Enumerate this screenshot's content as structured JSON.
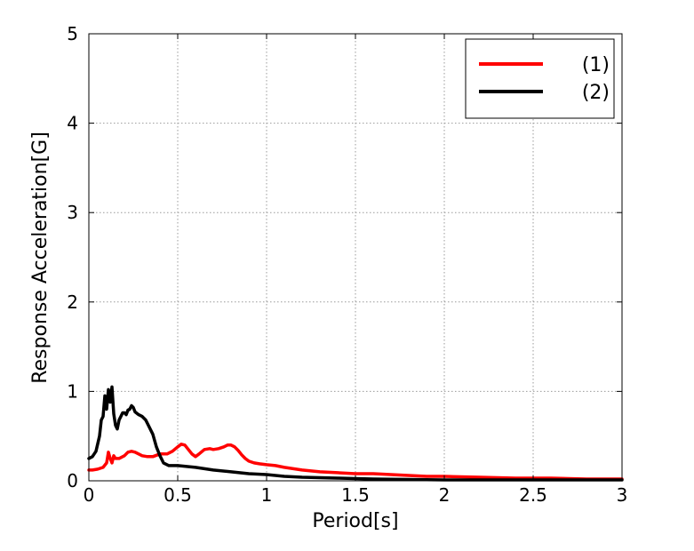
{
  "chart_data": {
    "type": "line",
    "title": "",
    "xlabel": "Period[s]",
    "ylabel": "Response Acceleration[G]",
    "xlim": [
      0,
      3
    ],
    "ylim": [
      0,
      5
    ],
    "xticks": [
      0,
      0.5,
      1,
      1.5,
      2,
      2.5,
      3
    ],
    "xtick_labels": [
      "0",
      "0.5",
      "1",
      "1.5",
      "2",
      "2.5",
      "3"
    ],
    "yticks": [
      0,
      1,
      2,
      3,
      4,
      5
    ],
    "ytick_labels": [
      "0",
      "1",
      "2",
      "3",
      "4",
      "5"
    ],
    "grid": true,
    "legend_position": "top-right",
    "series": [
      {
        "name": "(1)",
        "color": "#ff0000",
        "x": [
          0.0,
          0.02,
          0.05,
          0.08,
          0.1,
          0.11,
          0.12,
          0.13,
          0.14,
          0.15,
          0.17,
          0.2,
          0.22,
          0.24,
          0.26,
          0.28,
          0.3,
          0.33,
          0.36,
          0.4,
          0.44,
          0.47,
          0.5,
          0.52,
          0.54,
          0.56,
          0.58,
          0.6,
          0.62,
          0.65,
          0.68,
          0.7,
          0.73,
          0.76,
          0.78,
          0.8,
          0.82,
          0.84,
          0.86,
          0.88,
          0.9,
          0.93,
          0.96,
          1.0,
          1.05,
          1.1,
          1.2,
          1.3,
          1.4,
          1.5,
          1.6,
          1.7,
          1.8,
          1.9,
          2.0,
          2.2,
          2.4,
          2.6,
          2.8,
          3.0
        ],
        "y": [
          0.12,
          0.12,
          0.13,
          0.15,
          0.2,
          0.32,
          0.25,
          0.2,
          0.28,
          0.25,
          0.25,
          0.28,
          0.32,
          0.33,
          0.32,
          0.3,
          0.28,
          0.27,
          0.27,
          0.3,
          0.3,
          0.33,
          0.38,
          0.41,
          0.4,
          0.35,
          0.3,
          0.27,
          0.3,
          0.35,
          0.36,
          0.35,
          0.36,
          0.38,
          0.4,
          0.4,
          0.38,
          0.34,
          0.29,
          0.25,
          0.22,
          0.2,
          0.19,
          0.18,
          0.17,
          0.15,
          0.12,
          0.1,
          0.09,
          0.08,
          0.08,
          0.07,
          0.06,
          0.05,
          0.05,
          0.04,
          0.03,
          0.03,
          0.02,
          0.02
        ]
      },
      {
        "name": "(2)",
        "color": "#000000",
        "x": [
          0.0,
          0.02,
          0.04,
          0.06,
          0.07,
          0.08,
          0.09,
          0.1,
          0.11,
          0.12,
          0.13,
          0.14,
          0.15,
          0.16,
          0.17,
          0.18,
          0.19,
          0.2,
          0.21,
          0.22,
          0.23,
          0.24,
          0.25,
          0.26,
          0.28,
          0.3,
          0.32,
          0.34,
          0.36,
          0.38,
          0.4,
          0.42,
          0.45,
          0.5,
          0.55,
          0.6,
          0.7,
          0.8,
          0.9,
          1.0,
          1.1,
          1.2,
          1.4,
          1.6,
          1.8,
          2.0,
          2.5,
          3.0
        ],
        "y": [
          0.25,
          0.27,
          0.33,
          0.5,
          0.68,
          0.72,
          0.95,
          0.8,
          1.02,
          0.88,
          1.05,
          0.75,
          0.62,
          0.58,
          0.68,
          0.72,
          0.76,
          0.76,
          0.74,
          0.79,
          0.8,
          0.84,
          0.82,
          0.77,
          0.74,
          0.72,
          0.68,
          0.6,
          0.52,
          0.38,
          0.28,
          0.2,
          0.17,
          0.17,
          0.16,
          0.15,
          0.12,
          0.1,
          0.08,
          0.07,
          0.05,
          0.04,
          0.03,
          0.02,
          0.015,
          0.01,
          0.01,
          0.01
        ]
      }
    ]
  }
}
